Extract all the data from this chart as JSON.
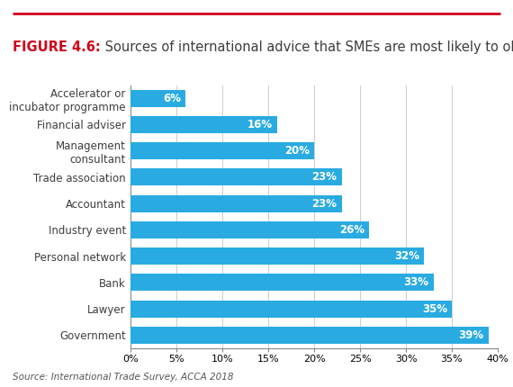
{
  "categories": [
    "Accelerator or\nincubator programme",
    "Financial adviser",
    "Management\nconsultant",
    "Trade association",
    "Accountant",
    "Industry event",
    "Personal network",
    "Bank",
    "Lawyer",
    "Government"
  ],
  "values": [
    6,
    16,
    20,
    23,
    23,
    26,
    32,
    33,
    35,
    39
  ],
  "bar_color": "#29ABE2",
  "title_bold": "FIGURE 4.6:",
  "title_rest": " Sources of international advice that SMEs are most likely to obtain",
  "title_color_bold": "#D0021B",
  "title_color_rest": "#3D3D3D",
  "xlim": [
    0,
    40
  ],
  "xtick_values": [
    0,
    5,
    10,
    15,
    20,
    25,
    30,
    35,
    40
  ],
  "xtick_labels": [
    "0%",
    "5%",
    "10%",
    "15%",
    "20%",
    "25%",
    "30%",
    "35%",
    "40%"
  ],
  "source_text": "Source: International Trade Survey, ACCA 2018",
  "top_line_color": "#D0021B",
  "background_color": "#ffffff",
  "label_color": "#ffffff",
  "label_fontsize": 8.5,
  "category_fontsize": 8.5,
  "title_fontsize": 10.5,
  "grid_color": "#cccccc",
  "source_fontsize": 7.5
}
